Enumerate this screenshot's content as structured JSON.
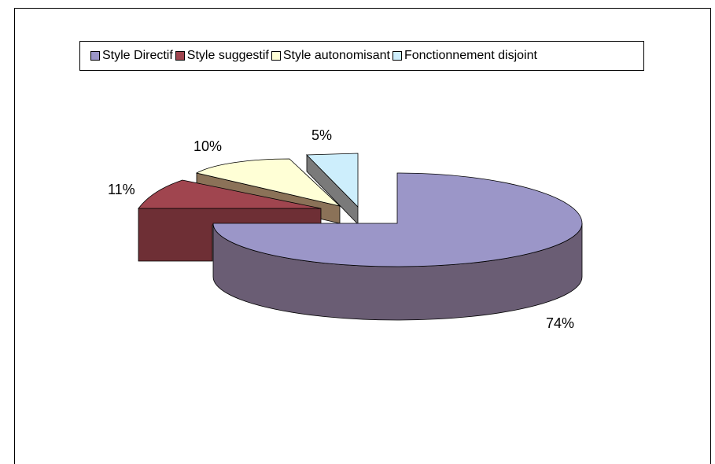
{
  "chart_data": {
    "type": "pie",
    "style": "3d-exploded",
    "categories": [
      "Style Directif",
      "Style suggestif",
      "Style autonomisant",
      "Fonctionnement disjoint"
    ],
    "values": [
      74,
      11,
      10,
      5
    ],
    "value_labels": [
      "74%",
      "11%",
      "10%",
      "5%"
    ],
    "legend_position": "top",
    "colors": {
      "Style Directif": "#9b96c8",
      "Style suggestif": "#a0454f",
      "Style autonomisant": "#ffffd6",
      "Fonctionnement disjoint": "#cdeefc"
    },
    "side_colors": {
      "Style Directif": "#6a5d74",
      "Style suggestif": "#6e2f35",
      "Style autonomisant": "#8b7258",
      "Fonctionnement disjoint": "#7a7a7a"
    }
  }
}
